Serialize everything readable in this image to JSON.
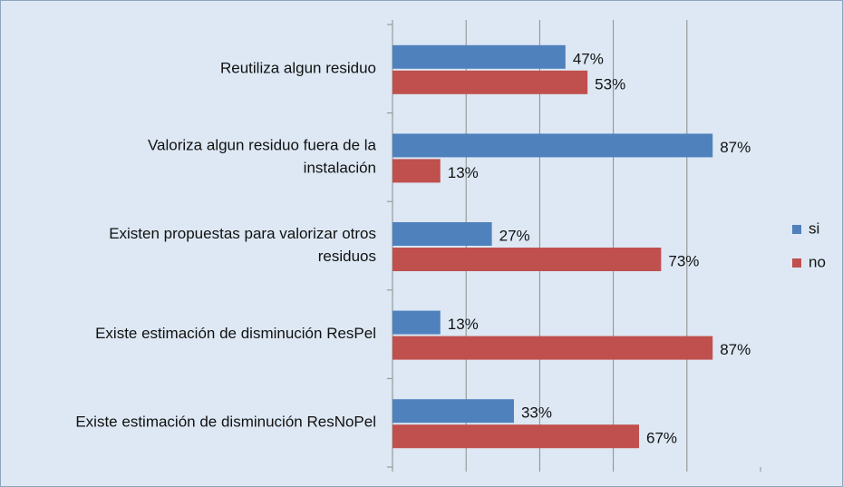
{
  "chart_data": {
    "type": "hbar",
    "categories": [
      [
        "Reutiliza algun residuo"
      ],
      [
        "Valoriza algun  residuo  fuera de la",
        "instalación"
      ],
      [
        "Existen  propuestas  para  valorizar otros",
        "residuos"
      ],
      [
        "Existe  estimación de disminución ResPel"
      ],
      [
        "Existe  estimación de disminución ResNoPel"
      ]
    ],
    "series": [
      {
        "name": "si",
        "color": "#4f81bd",
        "values": [
          47,
          87,
          27,
          13,
          33
        ],
        "value_labels": [
          "47%",
          "87%",
          "27%",
          "13%",
          "33%"
        ]
      },
      {
        "name": "no",
        "color": "#c0504d",
        "values": [
          53,
          13,
          73,
          87,
          67
        ],
        "value_labels": [
          "53%",
          "13%",
          "73%",
          "87%",
          "67%"
        ]
      }
    ],
    "xlim": [
      0,
      100
    ],
    "xticks": [
      0,
      20,
      40,
      60,
      80,
      100
    ],
    "grid": true,
    "legend": "right"
  }
}
